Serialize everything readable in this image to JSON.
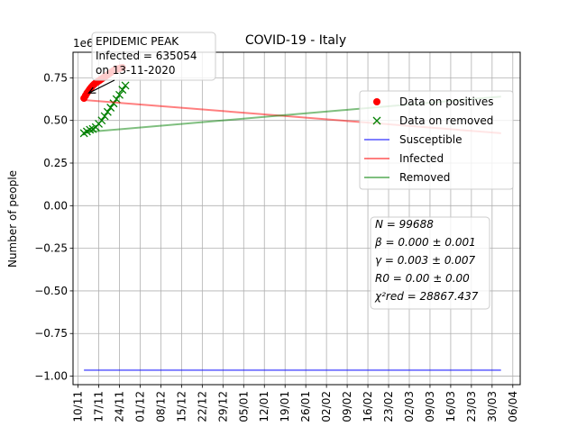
{
  "chart_data": {
    "type": "line",
    "title": "COVID-19 - Italy",
    "xlabel": "",
    "ylabel": "Number of people",
    "y_scale_label": "1e6",
    "y_scale": 1000000,
    "ylim": [
      -1.05,
      0.9
    ],
    "y_ticks": [
      0.75,
      0.5,
      0.25,
      0.0,
      -0.25,
      -0.5,
      -0.75,
      -1.0
    ],
    "y_tick_labels": [
      "0.75",
      "0.50",
      "0.25",
      "0.00",
      "−0.25",
      "−0.50",
      "−0.75",
      "−1.00"
    ],
    "x_tick_labels": [
      "10/11",
      "17/11",
      "24/11",
      "01/12",
      "08/12",
      "15/12",
      "22/12",
      "29/12",
      "05/01",
      "12/01",
      "19/01",
      "26/01",
      "02/02",
      "09/02",
      "16/02",
      "23/02",
      "02/03",
      "09/03",
      "16/03",
      "23/03",
      "30/03",
      "06/04"
    ],
    "x_tick_days": [
      0,
      7,
      14,
      21,
      28,
      35,
      42,
      49,
      56,
      63,
      70,
      77,
      84,
      91,
      98,
      105,
      112,
      119,
      126,
      133,
      140,
      147
    ],
    "xlim_days": [
      -1.7,
      149.5
    ],
    "grid": true,
    "legend_position": "upper right",
    "series": [
      {
        "name": "Data on positives",
        "kind": "marker-dot",
        "color": "#ff0000",
        "x_days": [
          2,
          2.5,
          3,
          3.5,
          4,
          4.5,
          5,
          5.5,
          6,
          6.5,
          7,
          7.5,
          8,
          8.5,
          9,
          9.5,
          10,
          10.5,
          11,
          11.5,
          12,
          12.5,
          13,
          13.5,
          14,
          14.5,
          15
        ],
        "values": [
          0.63,
          0.645,
          0.66,
          0.672,
          0.684,
          0.695,
          0.705,
          0.713,
          0.72,
          0.726,
          0.732,
          0.738,
          0.744,
          0.75,
          0.756,
          0.762,
          0.768,
          0.774,
          0.78,
          0.786,
          0.792,
          0.798,
          0.8,
          0.802,
          0.805,
          0.808,
          0.81
        ]
      },
      {
        "name": "Data on removed",
        "kind": "marker-x",
        "color": "#008000",
        "x_days": [
          2,
          3,
          4,
          5,
          6,
          7,
          8,
          9,
          10,
          11,
          12,
          13,
          14,
          15,
          16
        ],
        "values": [
          0.425,
          0.435,
          0.445,
          0.45,
          0.46,
          0.48,
          0.5,
          0.525,
          0.55,
          0.575,
          0.6,
          0.625,
          0.65,
          0.68,
          0.705
        ]
      },
      {
        "name": "Susceptible",
        "kind": "line",
        "color": "#0000ff",
        "x_days": [
          2,
          143
        ],
        "values": [
          -0.965,
          -0.965
        ]
      },
      {
        "name": "Infected",
        "kind": "line",
        "color": "#ff0000",
        "x_days": [
          2,
          143
        ],
        "values": [
          0.62,
          0.425
        ]
      },
      {
        "name": "Removed",
        "kind": "line",
        "color": "#008000",
        "x_days": [
          2,
          143
        ],
        "values": [
          0.43,
          0.64
        ]
      }
    ],
    "annotation": {
      "lines": [
        "EPIDEMIC PEAK",
        "Infected = 635054",
        "on 13-11-2020"
      ],
      "arrow_target": {
        "x_day": 3,
        "value": 0.65
      }
    },
    "stats_box": {
      "lines": [
        "N = 99688",
        "β = 0.000 ± 0.001",
        "γ = 0.003 ± 0.007",
        "R0 = 0.00 ± 0.00",
        "χ²red = 28867.437"
      ]
    }
  }
}
